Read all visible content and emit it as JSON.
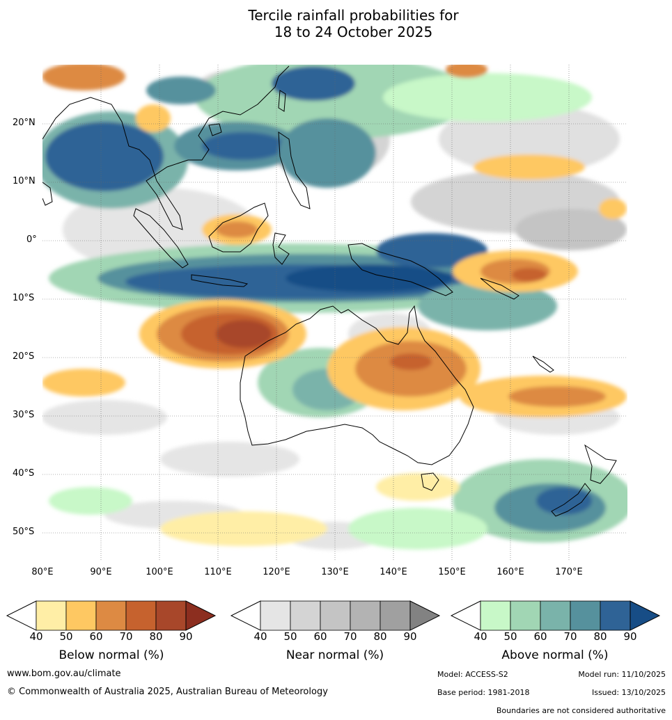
{
  "title": {
    "line1": "Tercile rainfall probabilities for",
    "line2": "18 to 24 October 2025"
  },
  "map": {
    "lat_labels": [
      "20°N",
      "10°N",
      "0°",
      "10°S",
      "20°S",
      "30°S",
      "40°S",
      "50°S"
    ],
    "lon_labels": [
      "80°E",
      "90°E",
      "100°E",
      "110°E",
      "120°E",
      "130°E",
      "140°E",
      "150°E",
      "160°E",
      "170°E"
    ],
    "lat_range": [
      -55,
      30
    ],
    "lon_range": [
      80,
      180
    ]
  },
  "colorbars": [
    {
      "name": "below-normal",
      "title": "Below normal (%)",
      "ticks": [
        "40",
        "50",
        "60",
        "70",
        "80",
        "90"
      ],
      "colors": [
        "#ffeea6",
        "#fec862",
        "#dd8a43",
        "#c6622e",
        "#a8472a",
        "#8c2e1f"
      ]
    },
    {
      "name": "near-normal",
      "title": "Near normal (%)",
      "ticks": [
        "40",
        "50",
        "60",
        "70",
        "80",
        "90"
      ],
      "colors": [
        "#e5e5e5",
        "#d4d4d4",
        "#c4c4c4",
        "#b3b3b3",
        "#a0a0a0",
        "#828282"
      ]
    },
    {
      "name": "above-normal",
      "title": "Above normal (%)",
      "ticks": [
        "40",
        "50",
        "60",
        "70",
        "80",
        "90"
      ],
      "colors": [
        "#c8f8c8",
        "#a1d6b4",
        "#7ab3aa",
        "#56919d",
        "#2f6396",
        "#174d86"
      ]
    }
  ],
  "footer": {
    "url": "www.bom.gov.au/climate",
    "copyright": "© Commonwealth of Australia 2025, Australian Bureau of Meteorology",
    "model": "Model: ACCESS-S2",
    "model_run": "Model run: 11/10/2025",
    "base_period": "Base period: 1981-2018",
    "issued": "Issued: 13/10/2025",
    "disclaimer": "Boundaries are not considered authoritative"
  }
}
